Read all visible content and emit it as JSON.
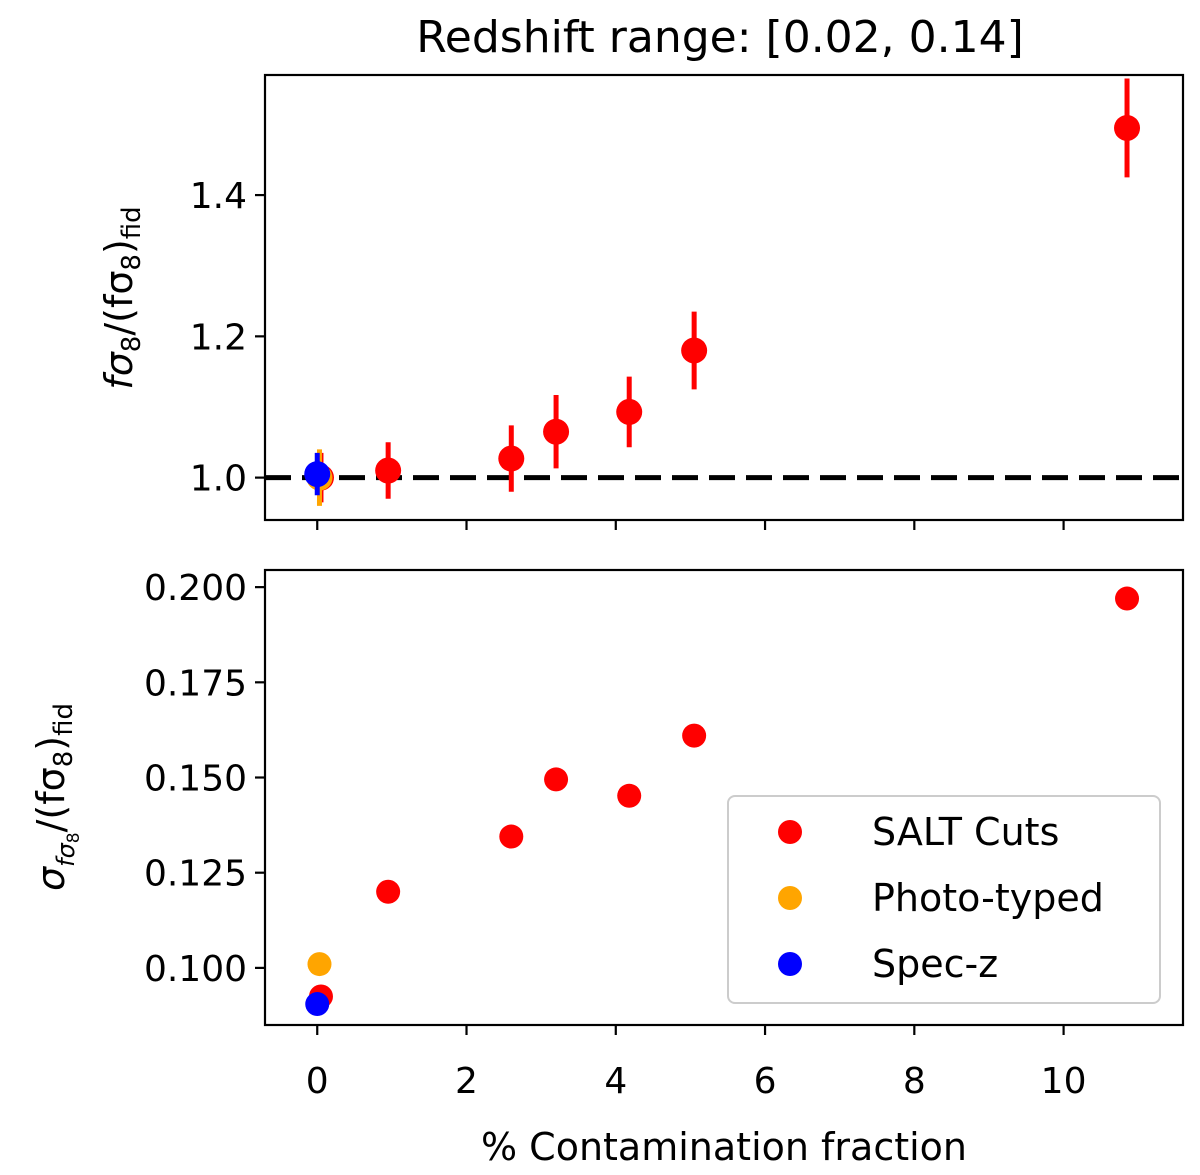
{
  "chart_data": [
    {
      "type": "scatter",
      "panel": "top",
      "title": "Redshift range: [0.02, 0.14]",
      "ylabel": "fσ8/(fσ8)fid",
      "ylabel_parts": {
        "main": "fσ",
        "sub1": "8",
        "mid": "/(fσ",
        "sub2": "8",
        "close": ")",
        "sub3": "fid"
      },
      "xlim": [
        -0.7,
        11.6
      ],
      "ylim": [
        0.94,
        1.57
      ],
      "yticks": [
        1.0,
        1.2,
        1.4
      ],
      "ytick_labels": [
        "1.0",
        "1.2",
        "1.4"
      ],
      "reference_line": {
        "y": 1.0,
        "style": "dashed",
        "color": "#000000"
      },
      "series": [
        {
          "name": "SALT Cuts",
          "color": "#ff0000",
          "x": [
            0.05,
            0.95,
            2.6,
            3.2,
            4.18,
            5.05,
            10.85
          ],
          "y": [
            1.0,
            1.01,
            1.027,
            1.065,
            1.093,
            1.18,
            1.495
          ],
          "yerr": [
            0.035,
            0.04,
            0.047,
            0.052,
            0.05,
            0.055,
            0.07
          ]
        },
        {
          "name": "Photo-typed",
          "color": "#ffa500",
          "x": [
            0.03
          ],
          "y": [
            1.0
          ],
          "yerr": [
            0.04
          ]
        },
        {
          "name": "Spec-z",
          "color": "#0000ff",
          "x": [
            0.0
          ],
          "y": [
            1.005
          ],
          "yerr": [
            0.03
          ]
        }
      ]
    },
    {
      "type": "scatter",
      "panel": "bottom",
      "xlabel": "% Contamination fraction",
      "ylabel": "σfσ8/(fσ8)fid",
      "ylabel_parts": {
        "main": "σ",
        "sub_a": "fσ",
        "sub_b": "8",
        "mid": "/(fσ",
        "sub2": "8",
        "close": ")",
        "sub3": "fid"
      },
      "xlim": [
        -0.7,
        11.6
      ],
      "ylim": [
        0.085,
        0.2045
      ],
      "xticks": [
        0,
        2,
        4,
        6,
        8,
        10
      ],
      "xtick_labels": [
        "0",
        "2",
        "4",
        "6",
        "8",
        "10"
      ],
      "yticks": [
        0.1,
        0.125,
        0.15,
        0.175,
        0.2
      ],
      "ytick_labels": [
        "0.100",
        "0.125",
        "0.150",
        "0.175",
        "0.200"
      ],
      "legend": {
        "position": "lower-right",
        "entries": [
          "SALT Cuts",
          "Photo-typed",
          "Spec-z"
        ]
      },
      "series": [
        {
          "name": "SALT Cuts",
          "color": "#ff0000",
          "x": [
            0.05,
            0.95,
            2.6,
            3.2,
            4.18,
            5.05,
            10.85
          ],
          "y": [
            0.0925,
            0.12,
            0.1345,
            0.1495,
            0.1452,
            0.161,
            0.197
          ]
        },
        {
          "name": "Photo-typed",
          "color": "#ffa500",
          "x": [
            0.03
          ],
          "y": [
            0.101
          ]
        },
        {
          "name": "Spec-z",
          "color": "#0000ff",
          "x": [
            0.0
          ],
          "y": [
            0.0905
          ]
        }
      ]
    }
  ]
}
